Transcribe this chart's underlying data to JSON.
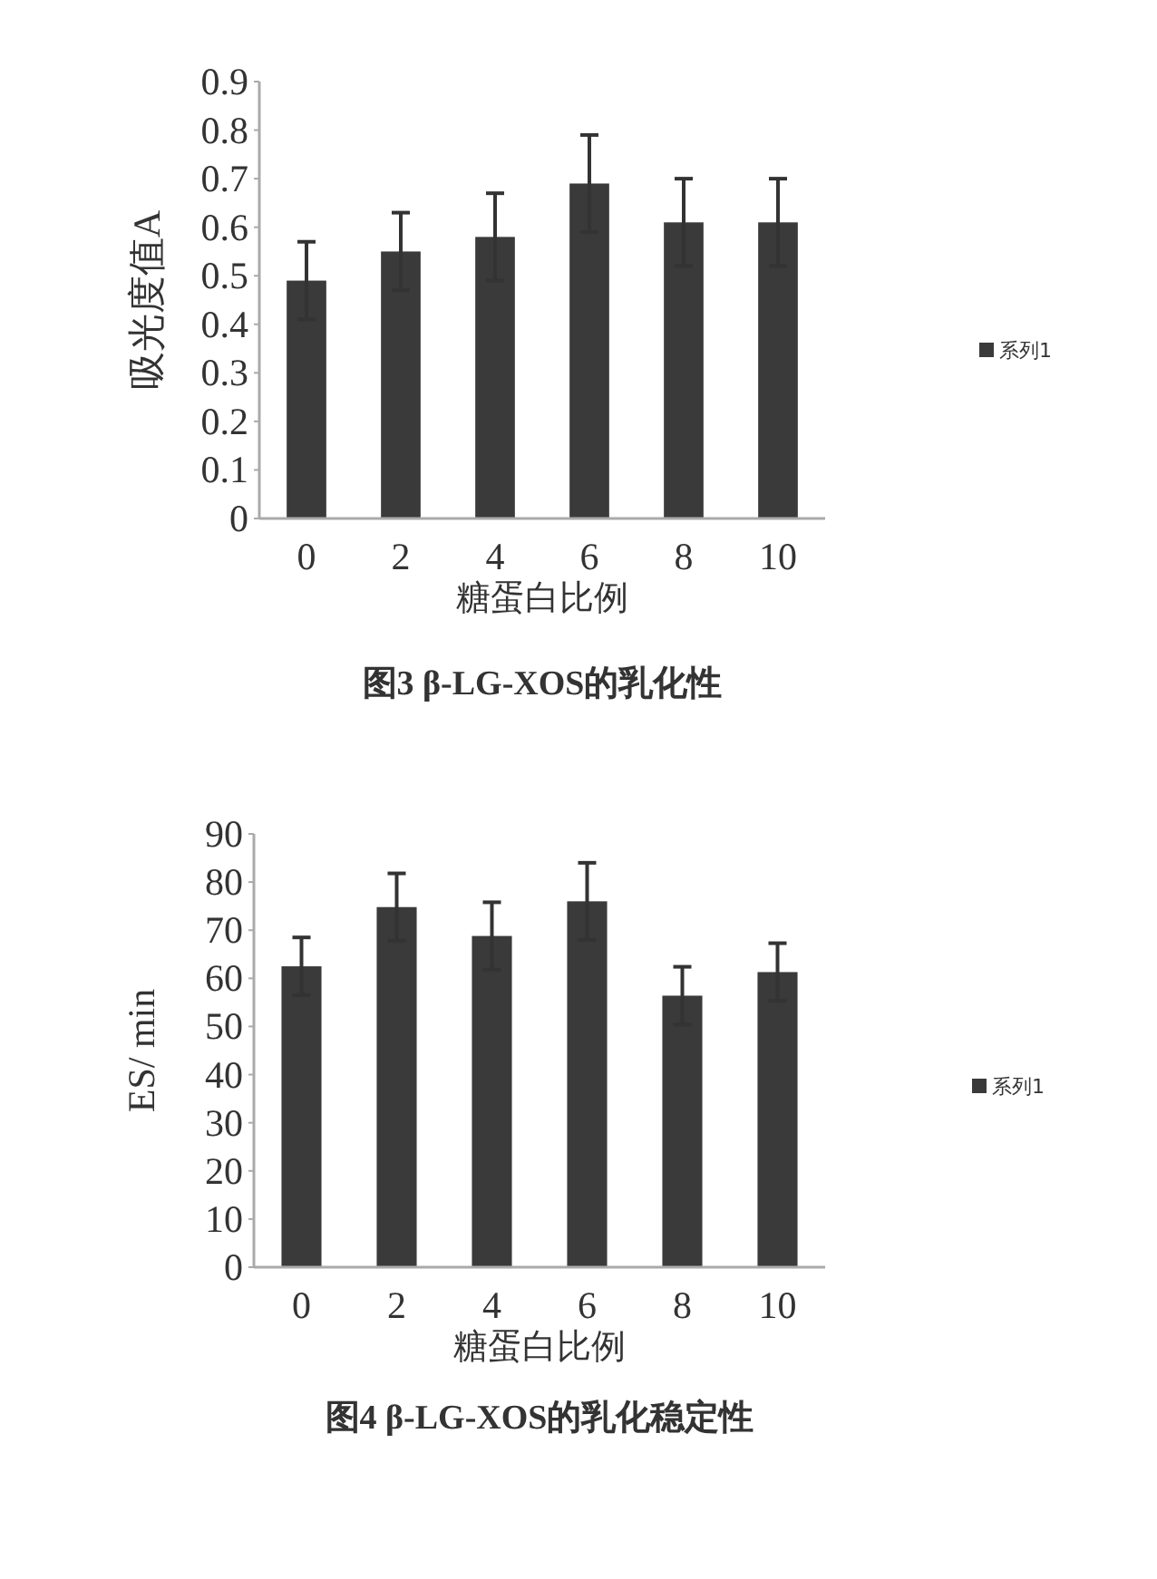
{
  "chart_data": [
    {
      "type": "bar",
      "title": "图3  β-LG-XOS的乳化性",
      "xlabel": "糖蛋白比例",
      "ylabel": "吸光度值A",
      "categories": [
        "0",
        "2",
        "4",
        "6",
        "8",
        "10"
      ],
      "series": [
        {
          "name": "系列1",
          "color": "#3a3a3a",
          "values": [
            0.49,
            0.55,
            0.58,
            0.69,
            0.61,
            0.61
          ],
          "errors": [
            0.08,
            0.08,
            0.09,
            0.1,
            0.09,
            0.09
          ]
        }
      ],
      "ylim": [
        0,
        0.9
      ],
      "yticks": [
        0,
        0.1,
        0.2,
        0.3,
        0.4,
        0.5,
        0.6,
        0.7,
        0.8,
        0.9
      ],
      "legend": "right",
      "grid": false
    },
    {
      "type": "bar",
      "title": "图4  β-LG-XOS的乳化稳定性",
      "xlabel": "糖蛋白比例",
      "ylabel": "ES/ min",
      "categories": [
        "0",
        "2",
        "4",
        "6",
        "8",
        "10"
      ],
      "series": [
        {
          "name": "系列1",
          "color": "#3a3a3a",
          "values": [
            62.5,
            74.8,
            68.8,
            76,
            56.4,
            61.3
          ],
          "errors": [
            6,
            7,
            7,
            8,
            6,
            6
          ]
        }
      ],
      "ylim": [
        0,
        90
      ],
      "yticks": [
        0,
        10,
        20,
        30,
        40,
        50,
        60,
        70,
        80,
        90
      ],
      "legend": "right",
      "grid": false
    }
  ]
}
